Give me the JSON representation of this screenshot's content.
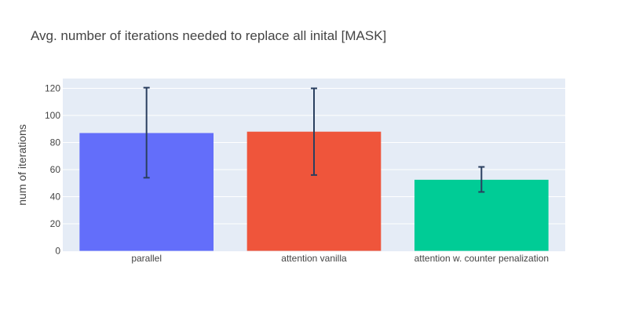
{
  "chart_data": {
    "type": "bar",
    "title": "Avg. number of iterations needed to replace all inital [MASK]",
    "xlabel": "",
    "ylabel": "num of iterations",
    "categories": [
      "parallel",
      "attention vanilla",
      "attention w. counter penalization"
    ],
    "values": [
      87,
      88,
      52.5
    ],
    "error_low": [
      54,
      56,
      43.5
    ],
    "error_high": [
      120.5,
      120,
      62
    ],
    "colors": [
      "#636efa",
      "#ef553b",
      "#00cc96"
    ],
    "ylim": [
      0,
      125
    ],
    "yticks": [
      0,
      20,
      40,
      60,
      80,
      100,
      120
    ],
    "grid": true,
    "plot_background": "#e5ecf6",
    "error_bar_color": "#2a3f5f",
    "legend": "none"
  }
}
